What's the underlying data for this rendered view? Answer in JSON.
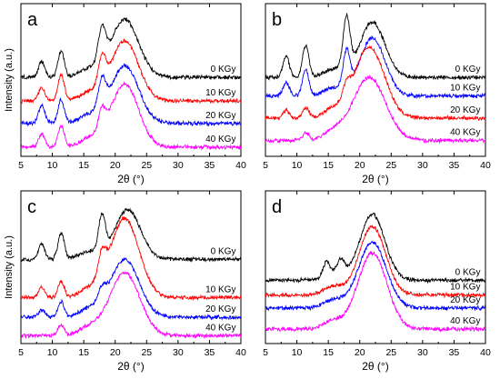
{
  "figure": {
    "shared_x_title": "2θ (°)",
    "shared_y_title": "Intensity (a.u.)"
  },
  "chart_data": [
    {
      "type": "line",
      "panel": "a",
      "xlabel": "2θ (°)",
      "ylabel": "Intensity (a.u.)",
      "xlim": [
        5,
        40
      ],
      "xticks": [
        5,
        10,
        15,
        20,
        25,
        30,
        35,
        40
      ],
      "series": [
        {
          "name": "0 KGy",
          "color": "#000000",
          "offset": 3.0,
          "peaks": [
            [
              8.3,
              0.5,
              0.6
            ],
            [
              11.4,
              0.5,
              1.0
            ],
            [
              17.9,
              0.6,
              1.3
            ],
            [
              21.5,
              2.2,
              2.2
            ],
            [
              15.8,
              1.5,
              0.3
            ]
          ]
        },
        {
          "name": "10 KGy",
          "color": "#ff0000",
          "offset": 2.1,
          "peaks": [
            [
              8.3,
              0.5,
              0.5
            ],
            [
              11.4,
              0.5,
              1.0
            ],
            [
              17.9,
              0.6,
              1.1
            ],
            [
              21.5,
              2.2,
              2.3
            ],
            [
              15.8,
              1.5,
              0.3
            ]
          ]
        },
        {
          "name": "20 KGy",
          "color": "#0000ff",
          "offset": 1.25,
          "peaks": [
            [
              8.3,
              0.5,
              0.7
            ],
            [
              11.4,
              0.5,
              0.9
            ],
            [
              17.9,
              0.6,
              1.1
            ],
            [
              21.5,
              2.2,
              2.2
            ],
            [
              15.8,
              1.5,
              0.3
            ]
          ]
        },
        {
          "name": "40 KGy",
          "color": "#ff00ff",
          "offset": 0.35,
          "peaks": [
            [
              8.3,
              0.5,
              0.5
            ],
            [
              11.4,
              0.5,
              0.8
            ],
            [
              17.9,
              0.6,
              0.8
            ],
            [
              21.5,
              2.2,
              2.4
            ],
            [
              15.8,
              1.5,
              0.3
            ]
          ]
        }
      ]
    },
    {
      "type": "line",
      "panel": "b",
      "xlabel": "2θ (°)",
      "ylabel": "",
      "xlim": [
        5,
        40
      ],
      "xticks": [
        5,
        10,
        15,
        20,
        25,
        30,
        35,
        40
      ],
      "series": [
        {
          "name": "0 KGy",
          "color": "#000000",
          "offset": 3.0,
          "peaks": [
            [
              8.3,
              0.5,
              0.8
            ],
            [
              11.4,
              0.5,
              1.2
            ],
            [
              17.9,
              0.55,
              2.0
            ],
            [
              22.0,
              2.0,
              2.1
            ],
            [
              15.8,
              1.5,
              0.3
            ]
          ]
        },
        {
          "name": "10 KGy",
          "color": "#0000ff",
          "offset": 2.3,
          "peaks": [
            [
              8.3,
              0.5,
              0.5
            ],
            [
              11.4,
              0.5,
              1.0
            ],
            [
              17.9,
              0.55,
              1.4
            ],
            [
              22.0,
              2.0,
              2.2
            ],
            [
              15.8,
              1.5,
              0.3
            ]
          ]
        },
        {
          "name": "20 KGy",
          "color": "#ff0000",
          "offset": 1.45,
          "peaks": [
            [
              8.3,
              0.5,
              0.3
            ],
            [
              11.4,
              0.5,
              0.4
            ],
            [
              17.9,
              0.55,
              0.5
            ],
            [
              21.5,
              2.4,
              2.7
            ],
            [
              15.8,
              1.5,
              0.3
            ]
          ]
        },
        {
          "name": "40 KGy",
          "color": "#ff00ff",
          "offset": 0.6,
          "peaks": [
            [
              11.4,
              0.5,
              0.3
            ],
            [
              21.5,
              2.6,
              2.4
            ],
            [
              15.8,
              1.5,
              0.3
            ]
          ]
        }
      ]
    },
    {
      "type": "line",
      "panel": "c",
      "xlabel": "2θ (°)",
      "ylabel": "Intensity (a.u.)",
      "xlim": [
        5,
        40
      ],
      "xticks": [
        5,
        10,
        15,
        20,
        25,
        30,
        35,
        40
      ],
      "series": [
        {
          "name": "0 KGy",
          "color": "#000000",
          "offset": 3.2,
          "peaks": [
            [
              8.3,
              0.5,
              0.6
            ],
            [
              11.4,
              0.5,
              1.0
            ],
            [
              17.9,
              0.55,
              1.4
            ],
            [
              22.0,
              2.0,
              1.9
            ],
            [
              15.8,
              1.5,
              0.3
            ]
          ]
        },
        {
          "name": "10 KGy",
          "color": "#ff0000",
          "offset": 1.75,
          "peaks": [
            [
              8.3,
              0.5,
              0.4
            ],
            [
              11.4,
              0.5,
              0.6
            ],
            [
              17.9,
              0.6,
              0.9
            ],
            [
              21.5,
              2.3,
              3.0
            ],
            [
              15.8,
              1.5,
              0.3
            ]
          ]
        },
        {
          "name": "20 KGy",
          "color": "#0000ff",
          "offset": 1.0,
          "peaks": [
            [
              8.3,
              0.5,
              0.3
            ],
            [
              11.4,
              0.5,
              0.6
            ],
            [
              17.9,
              0.6,
              0.5
            ],
            [
              21.5,
              2.3,
              2.2
            ],
            [
              15.8,
              1.5,
              0.3
            ]
          ]
        },
        {
          "name": "40 KGy",
          "color": "#ff00ff",
          "offset": 0.3,
          "peaks": [
            [
              11.4,
              0.5,
              0.4
            ],
            [
              21.5,
              2.4,
              2.4
            ],
            [
              15.8,
              1.5,
              0.3
            ]
          ]
        }
      ]
    },
    {
      "type": "line",
      "panel": "d",
      "xlabel": "2θ (°)",
      "ylabel": "",
      "xlim": [
        5,
        40
      ],
      "xticks": [
        5,
        10,
        15,
        20,
        25,
        30,
        35,
        40
      ],
      "series": [
        {
          "name": "0 KGy",
          "color": "#000000",
          "offset": 2.4,
          "peaks": [
            [
              14.7,
              0.5,
              0.5
            ],
            [
              17.0,
              0.6,
              0.5
            ],
            [
              22.0,
              2.0,
              2.5
            ],
            [
              15.8,
              1.5,
              0.3
            ]
          ]
        },
        {
          "name": "10 KGy",
          "color": "#ff0000",
          "offset": 1.85,
          "peaks": [
            [
              22.0,
              2.1,
              2.6
            ],
            [
              15.8,
              1.5,
              0.3
            ]
          ]
        },
        {
          "name": "20 KGy",
          "color": "#0000ff",
          "offset": 1.35,
          "peaks": [
            [
              22.0,
              2.2,
              2.5
            ],
            [
              15.8,
              1.5,
              0.3
            ]
          ]
        },
        {
          "name": "40 KGy",
          "color": "#ff00ff",
          "offset": 0.55,
          "peaks": [
            [
              22.0,
              2.3,
              2.9
            ],
            [
              15.8,
              1.5,
              0.3
            ]
          ]
        }
      ]
    }
  ]
}
